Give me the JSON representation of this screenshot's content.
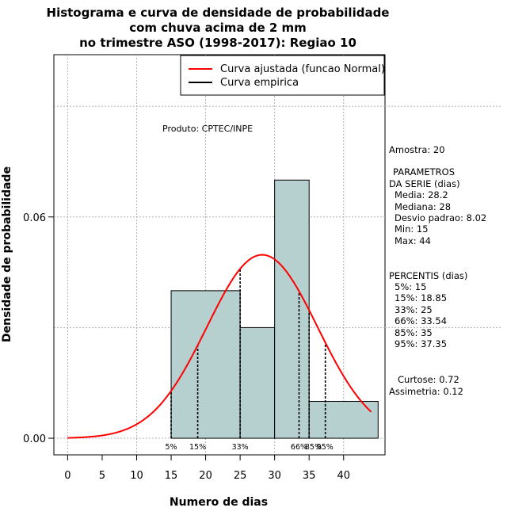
{
  "chart_data": {
    "type": "bar",
    "title": [
      "Histograma e curva de densidade de probabilidade",
      "com chuva acima de 2 mm",
      "no trimestre ASO (1998-2017): Regiao 10"
    ],
    "xlabel": "Numero de dias",
    "ylabel": "Densidade de probabilidade",
    "xlim": [
      -2,
      46
    ],
    "ylim": [
      -0.0045,
      0.104
    ],
    "xticks": [
      0,
      5,
      10,
      15,
      20,
      25,
      30,
      35,
      40
    ],
    "yticks": [
      0.0,
      0.06
    ],
    "ytick_labels": [
      "0.00",
      "0.06"
    ],
    "grid": true,
    "bins": [
      {
        "x0": 15,
        "x1": 25,
        "density": 0.04
      },
      {
        "x0": 25,
        "x1": 30,
        "density": 0.03
      },
      {
        "x0": 30,
        "x1": 35,
        "density": 0.07
      },
      {
        "x0": 35,
        "x1": 45,
        "density": 0.01
      }
    ],
    "bar_color": "#b6cfcf",
    "normal_curve": {
      "name": "Curva ajustada (funcao Normal)",
      "mean": 28.2,
      "sd": 8.02,
      "x_range": [
        0,
        44
      ],
      "color": "#ff0000"
    },
    "empirical_curve": {
      "name": "Curva empirica",
      "color": "#000000"
    },
    "legend": {
      "placement": "top-right",
      "entries": [
        "Curva ajustada (funcao Normal)",
        "Curva empirica"
      ]
    },
    "percentile_lines": [
      {
        "label": "5%",
        "value": 15
      },
      {
        "label": "15%",
        "value": 18.85
      },
      {
        "label": "33%",
        "value": 25
      },
      {
        "label": "66%",
        "value": 33.54
      },
      {
        "label": "85%",
        "value": 35
      },
      {
        "label": "95%",
        "value": 37.35
      }
    ],
    "annotation": "Produto: CPTEC/INPE"
  },
  "side_panel": {
    "amostra": "Amostra: 20",
    "parametros_title_1": "PARAMETROS",
    "parametros_title_2": "DA SERIE (dias)",
    "media": "Media: 28.2",
    "mediana": "Mediana: 28",
    "desvio": "Desvio padrao: 8.02",
    "min": "Min: 15",
    "max": "Max: 44",
    "percentis_title": "PERCENTIS (dias)",
    "p5": "5%: 15",
    "p15": "15%: 18.85",
    "p33": "33%: 25",
    "p66": "66%: 33.54",
    "p85": "85%: 35",
    "p95": "95%: 37.35",
    "curtose": "Curtose: 0.72",
    "assimetria": "Assimetria: 0.12"
  }
}
